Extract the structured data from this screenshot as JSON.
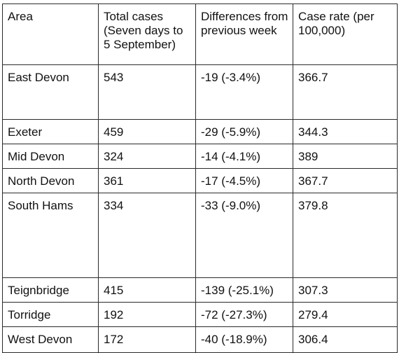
{
  "table": {
    "headers": [
      "Area",
      "Total cases (Seven days to 5 September)",
      "Differences from previous week",
      "Case rate (per 100,000)"
    ],
    "rows": [
      [
        "East Devon",
        "543",
        "-19 (-3.4%)",
        "366.7"
      ],
      [
        "Exeter",
        "459",
        "-29 (-5.9%)",
        "344.3"
      ],
      [
        "Mid Devon",
        "324",
        "-14 (-4.1%)",
        "389"
      ],
      [
        "North Devon",
        "361",
        "-17 (-4.5%)",
        "367.7"
      ],
      [
        "South Hams",
        "334",
        "-33 (-9.0%)",
        "379.8"
      ],
      [
        "Teignbridge",
        "415",
        "-139 (-25.1%)",
        "307.3"
      ],
      [
        "Torridge",
        "192",
        "-72 (-27.3%)",
        "279.4"
      ],
      [
        "West Devon",
        "172",
        "-40 (-18.9%)",
        "306.4"
      ]
    ]
  }
}
